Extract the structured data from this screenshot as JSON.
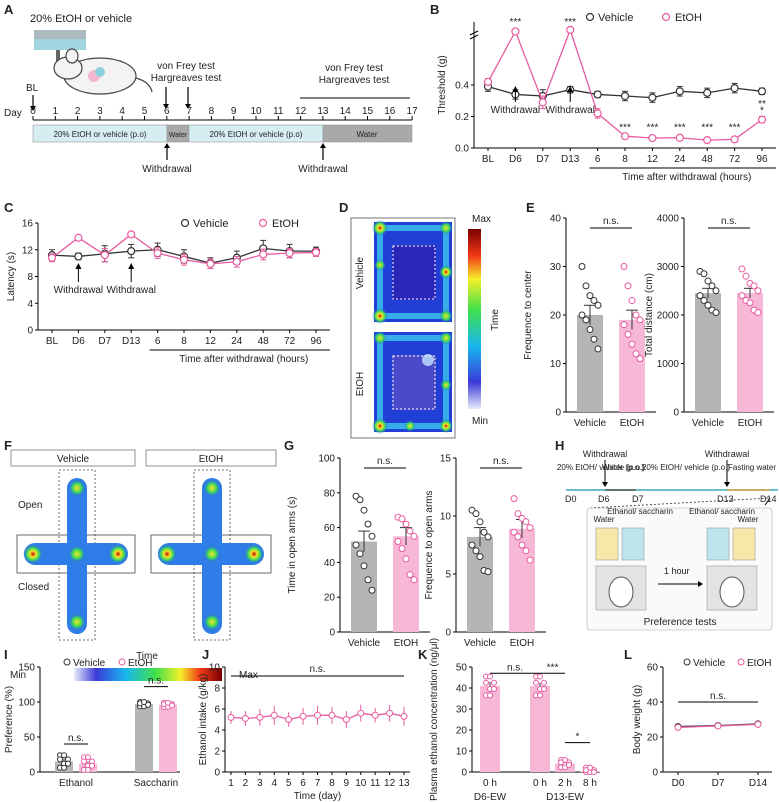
{
  "colors": {
    "vehicle": "#333333",
    "etoh": "#e75b9f",
    "etoh_fill": "#f7b8d6",
    "vehicle_fill": "#b5b5b5",
    "light_blue": "#d6eef2",
    "water_gray": "#a9a9a9"
  },
  "panels": {
    "A": "A",
    "B": "B",
    "C": "C",
    "D": "D",
    "E": "E",
    "F": "F",
    "G": "G",
    "H": "H",
    "I": "I",
    "J": "J",
    "K": "K",
    "L": "L"
  },
  "legend": {
    "vehicle": "Vehicle",
    "etoh": "EtOH"
  },
  "ns": "n.s.",
  "panelA": {
    "top_label": "20% EtOH or vehicle",
    "bl": "BL",
    "day_label": "Day",
    "days": [
      "0",
      "1",
      "2",
      "3",
      "4",
      "5",
      "6",
      "7",
      "8",
      "9",
      "10",
      "11",
      "12",
      "13",
      "14",
      "15",
      "16",
      "17"
    ],
    "test1": [
      "von Frey test",
      "Hargreaves test"
    ],
    "test2": [
      "von Frey test",
      "Hargreaves test"
    ],
    "bar_etoh1": "20% EtOH or vehicle (p.o)",
    "bar_water1": "Water",
    "bar_etoh2": "20% EtOH or vehicle (p.o)",
    "bar_water2": "Water",
    "withdrawal": "Withdrawal"
  },
  "chart_data": [
    {
      "panel": "B",
      "type": "line",
      "ylabel": "Threshold (g)",
      "xlabel": "Time after withdrawal (hours)",
      "categories": [
        "BL",
        "D6",
        "D7",
        "D13",
        "6",
        "8",
        "12",
        "24",
        "48",
        "72",
        "96"
      ],
      "ylim": [
        0,
        0.8
      ],
      "yticks": [
        "0.0",
        "0.2",
        "0.4"
      ],
      "series": [
        {
          "name": "Vehicle",
          "values": [
            0.39,
            0.34,
            0.33,
            0.37,
            0.34,
            0.33,
            0.32,
            0.36,
            0.35,
            0.38,
            0.36
          ],
          "errors": [
            0.03,
            0.03,
            0.04,
            0.02,
            0.02,
            0.03,
            0.03,
            0.03,
            0.03,
            0.03,
            0.02
          ]
        },
        {
          "name": "EtOH",
          "values": [
            0.42,
            0.74,
            0.29,
            0.75,
            0.22,
            0.075,
            0.063,
            0.065,
            0.05,
            0.055,
            0.18
          ],
          "errors": [
            0.02,
            0.01,
            0.04,
            0.01,
            0.03,
            0.01,
            0.01,
            0.01,
            0.01,
            0.01,
            0.02
          ]
        }
      ],
      "annotations": [
        {
          "text": "***",
          "category": "D6",
          "value": 0.78
        },
        {
          "text": "***",
          "category": "D13",
          "value": 0.78
        },
        {
          "text": "***",
          "category": "8",
          "value": 0.11
        },
        {
          "text": "***",
          "category": "12",
          "value": 0.11
        },
        {
          "text": "***",
          "category": "24",
          "value": 0.11
        },
        {
          "text": "***",
          "category": "48",
          "value": 0.11
        },
        {
          "text": "***",
          "category": "72",
          "value": 0.11
        },
        {
          "text": "*",
          "category": "96",
          "value": 0.22
        },
        {
          "text": "**",
          "category": "96",
          "value": 0.26
        }
      ],
      "arrow_label": "Withdrawal"
    },
    {
      "panel": "C",
      "type": "line",
      "ylabel": "Latency (s)",
      "xlabel": "Time after withdrawal (hours)",
      "categories": [
        "BL",
        "D6",
        "D7",
        "D13",
        "6",
        "8",
        "12",
        "24",
        "48",
        "72",
        "96"
      ],
      "ylim": [
        0,
        16
      ],
      "yticks": [
        "0",
        "4",
        "8",
        "12",
        "16"
      ],
      "series": [
        {
          "name": "Vehicle",
          "values": [
            11.2,
            11.0,
            11.4,
            11.8,
            12.0,
            11.0,
            10.0,
            10.8,
            12.2,
            11.8,
            11.8
          ],
          "errors": [
            0.8,
            0.5,
            1.2,
            1.0,
            1.0,
            1.0,
            0.8,
            1.0,
            1.2,
            1.0,
            0.6
          ]
        },
        {
          "name": "EtOH",
          "values": [
            10.8,
            13.8,
            11.2,
            14.3,
            11.5,
            10.5,
            9.9,
            10.2,
            11.3,
            11.5,
            11.6
          ],
          "errors": [
            0.6,
            0.3,
            1.0,
            0.3,
            0.8,
            0.8,
            0.7,
            0.8,
            0.8,
            0.7,
            0.6
          ]
        }
      ],
      "arrow_label": "Withdrawal"
    },
    {
      "panel": "E1",
      "type": "bar",
      "ylabel": "Frequence to center",
      "categories": [
        "Vehicle",
        "EtOH"
      ],
      "values": [
        20,
        19
      ],
      "errors": [
        2,
        2
      ],
      "ylim": [
        0,
        40
      ],
      "yticks": [
        "0",
        "10",
        "20",
        "30",
        "40"
      ],
      "points": [
        [
          30,
          26,
          24,
          23,
          22,
          20,
          19,
          17,
          15,
          13
        ],
        [
          30,
          26,
          23,
          20,
          19,
          18,
          16,
          14,
          12,
          11
        ]
      ]
    },
    {
      "panel": "E2",
      "type": "bar",
      "ylabel": "Total distance (cm)",
      "categories": [
        "Vehicle",
        "EtOH"
      ],
      "values": [
        2450,
        2450
      ],
      "errors": [
        100,
        100
      ],
      "ylim": [
        0,
        4000
      ],
      "yticks": [
        "0",
        "1000",
        "2000",
        "3000",
        "4000"
      ],
      "points": [
        [
          2900,
          2850,
          2700,
          2600,
          2500,
          2400,
          2300,
          2200,
          2100,
          2050
        ],
        [
          2950,
          2800,
          2650,
          2600,
          2500,
          2400,
          2300,
          2250,
          2100,
          2050
        ]
      ]
    },
    {
      "panel": "G1",
      "type": "bar",
      "ylabel": "Time in open arms (s)",
      "categories": [
        "Vehicle",
        "EtOH"
      ],
      "values": [
        52,
        55
      ],
      "errors": [
        6,
        5
      ],
      "ylim": [
        0,
        100
      ],
      "yticks": [
        "0",
        "20",
        "40",
        "60",
        "80",
        "100"
      ],
      "points": [
        [
          78,
          76,
          70,
          62,
          55,
          50,
          45,
          38,
          30,
          24
        ],
        [
          66,
          65,
          62,
          58,
          55,
          52,
          48,
          42,
          33,
          30
        ]
      ]
    },
    {
      "panel": "G2",
      "type": "bar",
      "ylabel": "Frequence to open arms",
      "categories": [
        "Vehicle",
        "EtOH"
      ],
      "values": [
        8.2,
        8.9
      ],
      "errors": [
        0.8,
        0.8
      ],
      "ylim": [
        0,
        15
      ],
      "yticks": [
        "0",
        "5",
        "10",
        "15"
      ],
      "points": [
        [
          10.5,
          10.2,
          9.5,
          8.6,
          8.2,
          7.5,
          7.0,
          6.5,
          5.3,
          5.2
        ],
        [
          11.5,
          10.2,
          9.8,
          9.5,
          9.0,
          8.6,
          8.2,
          7.5,
          7.0,
          6.2
        ]
      ]
    },
    {
      "panel": "I",
      "type": "bar",
      "ylabel": "Preference (%)",
      "categories": [
        "Ethanol",
        "Saccharin"
      ],
      "series": [
        {
          "name": "Vehicle",
          "values": [
            15,
            97
          ],
          "errors": [
            4,
            2
          ]
        },
        {
          "name": "EtOH",
          "values": [
            12,
            96
          ],
          "errors": [
            3,
            2
          ]
        }
      ],
      "ylim": [
        0,
        150
      ],
      "yticks": [
        "0",
        "50",
        "100",
        "150"
      ]
    },
    {
      "panel": "J",
      "type": "line",
      "ylabel": "Ethanol intake (g/kg)",
      "xlabel": "Time (day)",
      "x": [
        "1",
        "2",
        "3",
        "4",
        "5",
        "6",
        "7",
        "8",
        "9",
        "10",
        "11",
        "12",
        "13"
      ],
      "values": [
        5.2,
        5.1,
        5.2,
        5.4,
        5.0,
        5.3,
        5.4,
        5.4,
        5.0,
        5.6,
        5.4,
        5.6,
        5.3
      ],
      "errors": [
        0.6,
        0.7,
        0.8,
        0.9,
        0.7,
        0.8,
        0.9,
        0.8,
        0.8,
        0.8,
        0.7,
        0.8,
        0.9
      ],
      "ylim": [
        0,
        10
      ],
      "yticks": [
        "0",
        "2",
        "4",
        "6",
        "8",
        "10"
      ]
    },
    {
      "panel": "K",
      "type": "bar",
      "ylabel": "Plasma ethanol concentration (ng/μl)",
      "categories": [
        "0 h",
        "0 h",
        "2 h",
        "8 h"
      ],
      "groups": [
        "D6-EW",
        "D13-EW"
      ],
      "values": [
        41,
        41,
        4,
        0.3
      ],
      "errors": [
        2,
        1.5,
        1,
        0.1
      ],
      "ylim": [
        0,
        50
      ],
      "yticks": [
        "0",
        "10",
        "20",
        "30",
        "40",
        "50"
      ],
      "significance": [
        "n.s.",
        "***",
        "*"
      ]
    },
    {
      "panel": "L",
      "type": "line",
      "ylabel": "Body weight (g)",
      "x": [
        "D0",
        "D7",
        "D14"
      ],
      "series": [
        {
          "name": "Vehicle",
          "values": [
            26,
            26.5,
            27.5
          ]
        },
        {
          "name": "EtOH",
          "values": [
            25.5,
            26.3,
            27.2
          ]
        }
      ],
      "ylim": [
        0,
        60
      ],
      "yticks": [
        "0",
        "20",
        "40",
        "60"
      ]
    }
  ],
  "panelD": {
    "vehicle": "Vehicle",
    "etoh": "EtOH",
    "max": "Max",
    "min": "Min",
    "time": "Time"
  },
  "panelF": {
    "vehicle": "Vehicle",
    "etoh": "EtOH",
    "open": "Open",
    "closed": "Closed",
    "time": "Time",
    "min": "Min",
    "max": "Max"
  },
  "panelH": {
    "withdrawal": "Withdrawal",
    "seg1": "20% EtOH/ vehicle (p.o.)",
    "seg2": "Water (p.o.)",
    "seg3": "20% EtOH/ vehicle (p.o.)",
    "seg4": "Fasting water",
    "days": [
      "D0",
      "D6",
      "D7",
      "D13",
      "D14"
    ],
    "water": "Water",
    "ethsac": "Ethanol/ saccharin",
    "hour": "1 hour",
    "pref": "Preference tests"
  },
  "panelK": {
    "groups": [
      "D6-EW",
      "D13-EW"
    ],
    "ticks": [
      "0 h",
      "0 h",
      "2 h",
      "8 h"
    ]
  }
}
